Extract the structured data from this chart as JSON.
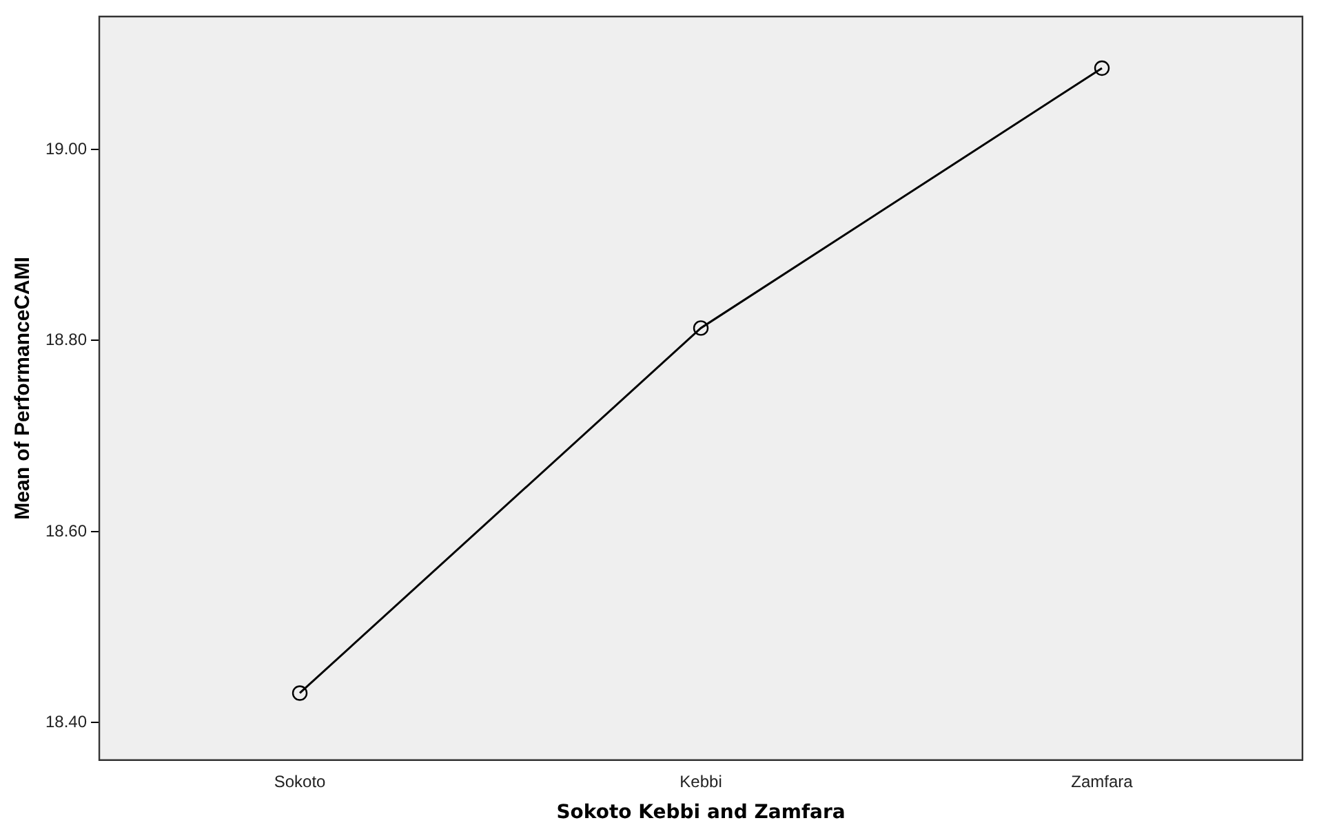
{
  "chart_data": {
    "type": "line",
    "xlabel": "Sokoto Kebbi and Zamfara",
    "ylabel": "Mean of PerformanceCAMI",
    "categories": [
      "Sokoto",
      "Kebbi",
      "Zamfara"
    ],
    "series": [
      {
        "color": "#000000",
        "values": [
          18.431,
          18.813,
          19.085
        ]
      }
    ],
    "ylim": [
      18.361,
      19.139
    ],
    "yticks": [
      {
        "value": 18.4,
        "label": "18.40"
      },
      {
        "value": 18.6,
        "label": "18.60"
      },
      {
        "value": 18.8,
        "label": "18.80"
      },
      {
        "value": 19.0,
        "label": "19.00"
      }
    ],
    "grid": false,
    "legend": false,
    "marker": "circle",
    "line_style": "solid"
  }
}
